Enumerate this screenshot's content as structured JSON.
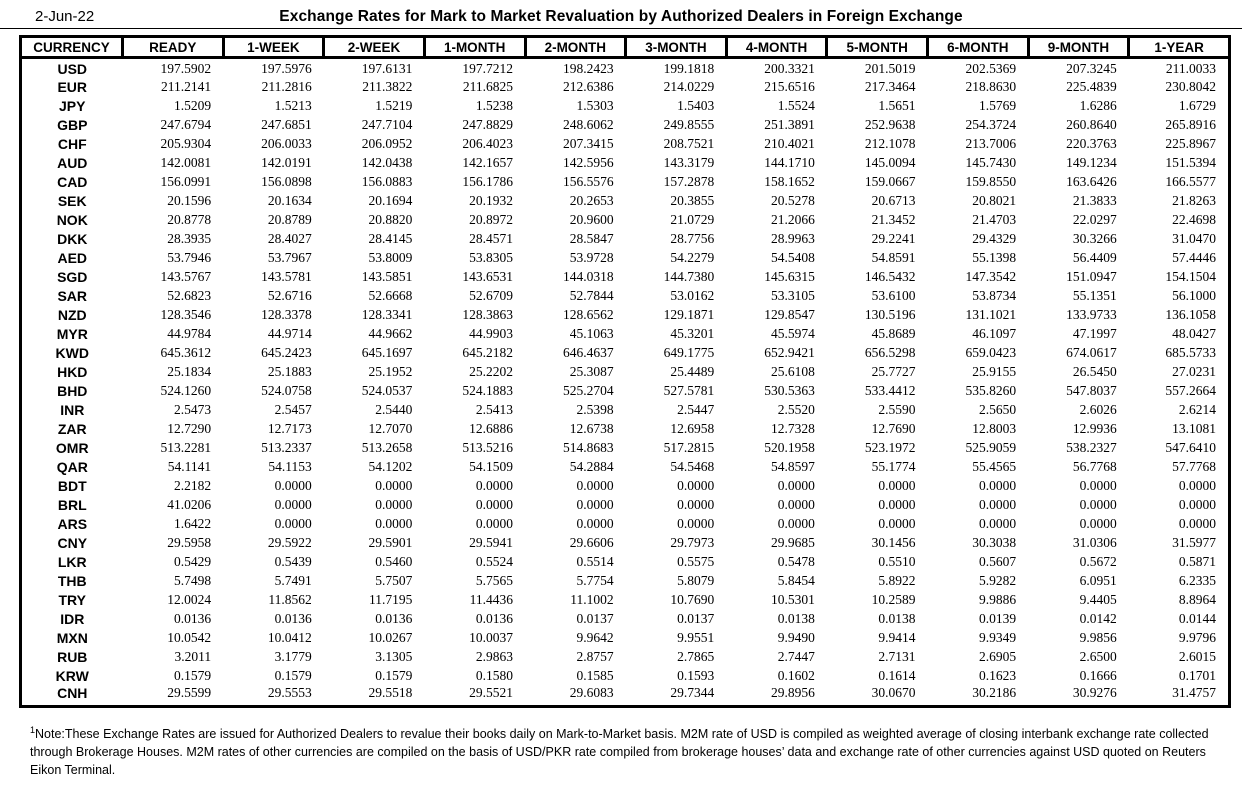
{
  "header": {
    "date": "2-Jun-22",
    "title": "Exchange Rates for Mark to Market Revaluation by Authorized Dealers in Foreign Exchange"
  },
  "table": {
    "columns": [
      "CURRENCY",
      "READY",
      "1-WEEK",
      "2-WEEK",
      "1-MONTH",
      "2-MONTH",
      "3-MONTH",
      "4-MONTH",
      "5-MONTH",
      "6-MONTH",
      "9-MONTH",
      "1-YEAR"
    ],
    "rows": [
      {
        "code": "USD",
        "rates": [
          "197.5902",
          "197.5976",
          "197.6131",
          "197.7212",
          "198.2423",
          "199.1818",
          "200.3321",
          "201.5019",
          "202.5369",
          "207.3245",
          "211.0033"
        ]
      },
      {
        "code": "EUR",
        "rates": [
          "211.2141",
          "211.2816",
          "211.3822",
          "211.6825",
          "212.6386",
          "214.0229",
          "215.6516",
          "217.3464",
          "218.8630",
          "225.4839",
          "230.8042"
        ]
      },
      {
        "code": "JPY",
        "rates": [
          "1.5209",
          "1.5213",
          "1.5219",
          "1.5238",
          "1.5303",
          "1.5403",
          "1.5524",
          "1.5651",
          "1.5769",
          "1.6286",
          "1.6729"
        ]
      },
      {
        "code": "GBP",
        "rates": [
          "247.6794",
          "247.6851",
          "247.7104",
          "247.8829",
          "248.6062",
          "249.8555",
          "251.3891",
          "252.9638",
          "254.3724",
          "260.8640",
          "265.8916"
        ]
      },
      {
        "code": "CHF",
        "rates": [
          "205.9304",
          "206.0033",
          "206.0952",
          "206.4023",
          "207.3415",
          "208.7521",
          "210.4021",
          "212.1078",
          "213.7006",
          "220.3763",
          "225.8967"
        ]
      },
      {
        "code": "AUD",
        "rates": [
          "142.0081",
          "142.0191",
          "142.0438",
          "142.1657",
          "142.5956",
          "143.3179",
          "144.1710",
          "145.0094",
          "145.7430",
          "149.1234",
          "151.5394"
        ]
      },
      {
        "code": "CAD",
        "rates": [
          "156.0991",
          "156.0898",
          "156.0883",
          "156.1786",
          "156.5576",
          "157.2878",
          "158.1652",
          "159.0667",
          "159.8550",
          "163.6426",
          "166.5577"
        ]
      },
      {
        "code": "SEK",
        "rates": [
          "20.1596",
          "20.1634",
          "20.1694",
          "20.1932",
          "20.2653",
          "20.3855",
          "20.5278",
          "20.6713",
          "20.8021",
          "21.3833",
          "21.8263"
        ]
      },
      {
        "code": "NOK",
        "rates": [
          "20.8778",
          "20.8789",
          "20.8820",
          "20.8972",
          "20.9600",
          "21.0729",
          "21.2066",
          "21.3452",
          "21.4703",
          "22.0297",
          "22.4698"
        ]
      },
      {
        "code": "DKK",
        "rates": [
          "28.3935",
          "28.4027",
          "28.4145",
          "28.4571",
          "28.5847",
          "28.7756",
          "28.9963",
          "29.2241",
          "29.4329",
          "30.3266",
          "31.0470"
        ]
      },
      {
        "code": "AED",
        "rates": [
          "53.7946",
          "53.7967",
          "53.8009",
          "53.8305",
          "53.9728",
          "54.2279",
          "54.5408",
          "54.8591",
          "55.1398",
          "56.4409",
          "57.4446"
        ]
      },
      {
        "code": "SGD",
        "rates": [
          "143.5767",
          "143.5781",
          "143.5851",
          "143.6531",
          "144.0318",
          "144.7380",
          "145.6315",
          "146.5432",
          "147.3542",
          "151.0947",
          "154.1504"
        ]
      },
      {
        "code": "SAR",
        "rates": [
          "52.6823",
          "52.6716",
          "52.6668",
          "52.6709",
          "52.7844",
          "53.0162",
          "53.3105",
          "53.6100",
          "53.8734",
          "55.1351",
          "56.1000"
        ]
      },
      {
        "code": "NZD",
        "rates": [
          "128.3546",
          "128.3378",
          "128.3341",
          "128.3863",
          "128.6562",
          "129.1871",
          "129.8547",
          "130.5196",
          "131.1021",
          "133.9733",
          "136.1058"
        ]
      },
      {
        "code": "MYR",
        "rates": [
          "44.9784",
          "44.9714",
          "44.9662",
          "44.9903",
          "45.1063",
          "45.3201",
          "45.5974",
          "45.8689",
          "46.1097",
          "47.1997",
          "48.0427"
        ]
      },
      {
        "code": "KWD",
        "rates": [
          "645.3612",
          "645.2423",
          "645.1697",
          "645.2182",
          "646.4637",
          "649.1775",
          "652.9421",
          "656.5298",
          "659.0423",
          "674.0617",
          "685.5733"
        ]
      },
      {
        "code": "HKD",
        "rates": [
          "25.1834",
          "25.1883",
          "25.1952",
          "25.2202",
          "25.3087",
          "25.4489",
          "25.6108",
          "25.7727",
          "25.9155",
          "26.5450",
          "27.0231"
        ]
      },
      {
        "code": "BHD",
        "rates": [
          "524.1260",
          "524.0758",
          "524.0537",
          "524.1883",
          "525.2704",
          "527.5781",
          "530.5363",
          "533.4412",
          "535.8260",
          "547.8037",
          "557.2664"
        ]
      },
      {
        "code": "INR",
        "rates": [
          "2.5473",
          "2.5457",
          "2.5440",
          "2.5413",
          "2.5398",
          "2.5447",
          "2.5520",
          "2.5590",
          "2.5650",
          "2.6026",
          "2.6214"
        ]
      },
      {
        "code": "ZAR",
        "rates": [
          "12.7290",
          "12.7173",
          "12.7070",
          "12.6886",
          "12.6738",
          "12.6958",
          "12.7328",
          "12.7690",
          "12.8003",
          "12.9936",
          "13.1081"
        ]
      },
      {
        "code": "OMR",
        "rates": [
          "513.2281",
          "513.2337",
          "513.2658",
          "513.5216",
          "514.8683",
          "517.2815",
          "520.1958",
          "523.1972",
          "525.9059",
          "538.2327",
          "547.6410"
        ]
      },
      {
        "code": "QAR",
        "rates": [
          "54.1141",
          "54.1153",
          "54.1202",
          "54.1509",
          "54.2884",
          "54.5468",
          "54.8597",
          "55.1774",
          "55.4565",
          "56.7768",
          "57.7768"
        ]
      },
      {
        "code": "BDT",
        "rates": [
          "2.2182",
          "0.0000",
          "0.0000",
          "0.0000",
          "0.0000",
          "0.0000",
          "0.0000",
          "0.0000",
          "0.0000",
          "0.0000",
          "0.0000"
        ]
      },
      {
        "code": "BRL",
        "rates": [
          "41.0206",
          "0.0000",
          "0.0000",
          "0.0000",
          "0.0000",
          "0.0000",
          "0.0000",
          "0.0000",
          "0.0000",
          "0.0000",
          "0.0000"
        ]
      },
      {
        "code": "ARS",
        "rates": [
          "1.6422",
          "0.0000",
          "0.0000",
          "0.0000",
          "0.0000",
          "0.0000",
          "0.0000",
          "0.0000",
          "0.0000",
          "0.0000",
          "0.0000"
        ]
      },
      {
        "code": "CNY",
        "rates": [
          "29.5958",
          "29.5922",
          "29.5901",
          "29.5941",
          "29.6606",
          "29.7973",
          "29.9685",
          "30.1456",
          "30.3038",
          "31.0306",
          "31.5977"
        ]
      },
      {
        "code": "LKR",
        "rates": [
          "0.5429",
          "0.5439",
          "0.5460",
          "0.5524",
          "0.5514",
          "0.5575",
          "0.5478",
          "0.5510",
          "0.5607",
          "0.5672",
          "0.5871"
        ]
      },
      {
        "code": "THB",
        "rates": [
          "5.7498",
          "5.7491",
          "5.7507",
          "5.7565",
          "5.7754",
          "5.8079",
          "5.8454",
          "5.8922",
          "5.9282",
          "6.0951",
          "6.2335"
        ]
      },
      {
        "code": "TRY",
        "rates": [
          "12.0024",
          "11.8562",
          "11.7195",
          "11.4436",
          "11.1002",
          "10.7690",
          "10.5301",
          "10.2589",
          "9.9886",
          "9.4405",
          "8.8964"
        ]
      },
      {
        "code": "IDR",
        "rates": [
          "0.0136",
          "0.0136",
          "0.0136",
          "0.0136",
          "0.0137",
          "0.0137",
          "0.0138",
          "0.0138",
          "0.0139",
          "0.0142",
          "0.0144"
        ]
      },
      {
        "code": "MXN",
        "rates": [
          "10.0542",
          "10.0412",
          "10.0267",
          "10.0037",
          "9.9642",
          "9.9551",
          "9.9490",
          "9.9414",
          "9.9349",
          "9.9856",
          "9.9796"
        ]
      },
      {
        "code": "RUB",
        "rates": [
          "3.2011",
          "3.1779",
          "3.1305",
          "2.9863",
          "2.8757",
          "2.7865",
          "2.7447",
          "2.7131",
          "2.6905",
          "2.6500",
          "2.6015"
        ]
      },
      {
        "code": "KRW",
        "rates": [
          "0.1579",
          "0.1579",
          "0.1579",
          "0.1580",
          "0.1585",
          "0.1593",
          "0.1602",
          "0.1614",
          "0.1623",
          "0.1666",
          "0.1701"
        ]
      },
      {
        "code": "CNH",
        "rates": [
          "29.5599",
          "29.5553",
          "29.5518",
          "29.5521",
          "29.6083",
          "29.7344",
          "29.8956",
          "30.0670",
          "30.2186",
          "30.9276",
          "31.4757"
        ]
      }
    ]
  },
  "footnote": {
    "marker": "1",
    "text": "Note:These Exchange Rates are issued for Authorized Dealers to revalue their books daily on Mark-to-Market basis. M2M rate of USD is compiled as weighted average of closing interbank exchange rate collected through Brokerage Houses. M2M rates of other currencies are compiled on the basis of USD/PKR rate compiled from brokerage houses’ data and exchange rate of other currencies against USD quoted on Reuters Eikon Terminal."
  },
  "colors": {
    "border": "#000000",
    "text": "#000000",
    "background": "#ffffff"
  }
}
